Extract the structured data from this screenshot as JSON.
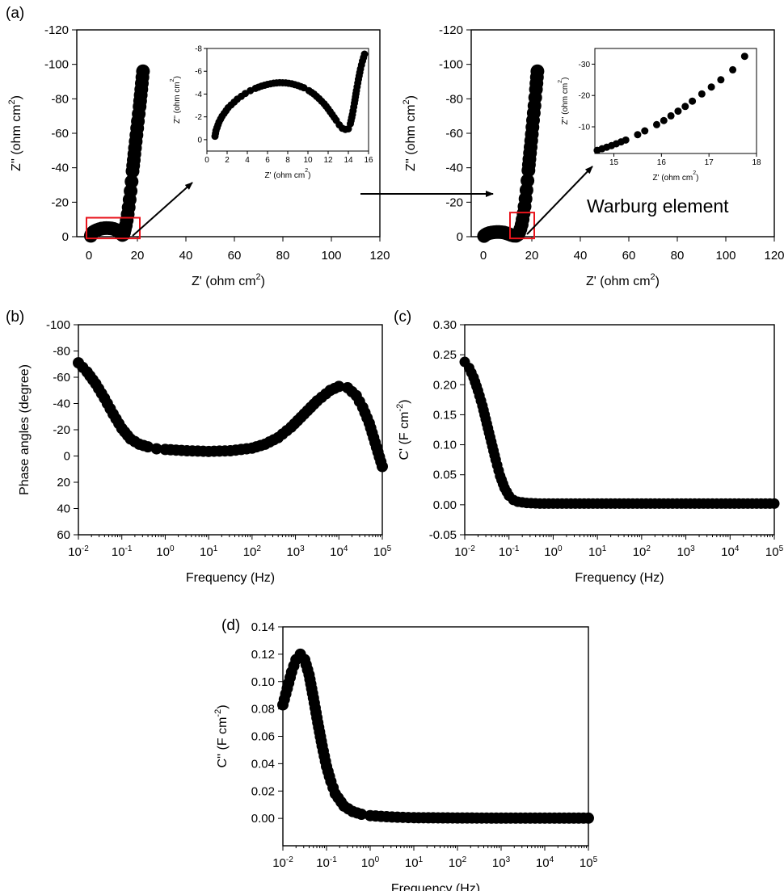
{
  "chart_data": [
    {
      "id": "a-left",
      "panel": "(a)",
      "type": "scatter",
      "xlabel": "Z' (ohm cm",
      "xlabel_sup": "2",
      "xlabel_close": ")",
      "ylabel": "Z'' (ohm cm",
      "ylabel_sup": "2",
      "ylabel_close": ")",
      "xlim": [
        -5,
        120
      ],
      "ylim": [
        0,
        -120
      ],
      "xscale": "linear",
      "xticks": [
        "0",
        "20",
        "40",
        "60",
        "80",
        "100",
        "120"
      ],
      "yticks": [
        "0",
        "-20",
        "-40",
        "-60",
        "-80",
        "-100",
        "-120"
      ],
      "series": [
        {
          "points": [
            [
              0.8,
              -0.5
            ],
            [
              1.0,
              -1.3
            ],
            [
              1.3,
              -2.0
            ],
            [
              1.8,
              -2.7
            ],
            [
              2.5,
              -3.3
            ],
            [
              3.3,
              -3.8
            ],
            [
              4.2,
              -4.3
            ],
            [
              5.2,
              -4.7
            ],
            [
              6.2,
              -4.9
            ],
            [
              7.2,
              -5.0
            ],
            [
              8.2,
              -4.95
            ],
            [
              9.2,
              -4.8
            ],
            [
              10.2,
              -4.5
            ],
            [
              11.1,
              -4.0
            ],
            [
              12.0,
              -3.3
            ],
            [
              12.7,
              -2.5
            ],
            [
              13.3,
              -1.6
            ],
            [
              13.8,
              -1.0
            ],
            [
              14.2,
              -1.3
            ],
            [
              14.5,
              -2.5
            ],
            [
              14.8,
              -4.2
            ],
            [
              15.2,
              -6.5
            ],
            [
              15.6,
              -9.5
            ],
            [
              16.0,
              -13
            ],
            [
              16.4,
              -17
            ],
            [
              16.8,
              -21.5
            ],
            [
              17.2,
              -26.5
            ],
            [
              17.6,
              -32
            ],
            [
              18.0,
              -38
            ],
            [
              18.5,
              -44.5
            ],
            [
              19.0,
              -51.5
            ],
            [
              19.6,
              -59
            ],
            [
              20.2,
              -67
            ],
            [
              20.9,
              -75.5
            ],
            [
              21.6,
              -85.5
            ],
            [
              22.3,
              -96
            ]
          ]
        }
      ],
      "highlight_box": [
        -1,
        21,
        1,
        -11
      ]
    },
    {
      "id": "a-left-inset",
      "panel": "",
      "type": "scatter",
      "xlabel": "Z' (ohm cm",
      "xlabel_sup": "2",
      "xlabel_close": ")",
      "ylabel": "Z'' (ohm cm",
      "ylabel_sup": "2",
      "ylabel_close": ")",
      "xlim": [
        0,
        16
      ],
      "ylim": [
        1,
        -8
      ],
      "xscale": "linear",
      "xticks": [
        "0",
        "2",
        "4",
        "6",
        "8",
        "10",
        "12",
        "14",
        "16"
      ],
      "yticks": [
        "0",
        "-2",
        "-4",
        "-6",
        "-8"
      ],
      "series": [
        {
          "points": [
            [
              0.8,
              -0.3
            ],
            [
              0.85,
              -0.55
            ],
            [
              0.9,
              -0.8
            ],
            [
              1.0,
              -1.05
            ],
            [
              1.1,
              -1.3
            ],
            [
              1.2,
              -1.55
            ],
            [
              1.35,
              -1.8
            ],
            [
              1.5,
              -2.05
            ],
            [
              1.7,
              -2.3
            ],
            [
              1.9,
              -2.55
            ],
            [
              2.1,
              -2.8
            ],
            [
              2.4,
              -3.05
            ],
            [
              2.7,
              -3.3
            ],
            [
              3.0,
              -3.55
            ],
            [
              3.4,
              -3.8
            ],
            [
              3.8,
              -4.05
            ],
            [
              4.3,
              -4.3
            ],
            [
              4.8,
              -4.5
            ],
            [
              5.4,
              -4.7
            ],
            [
              6.0,
              -4.85
            ],
            [
              6.6,
              -4.95
            ],
            [
              7.2,
              -5.0
            ],
            [
              7.8,
              -4.98
            ],
            [
              8.4,
              -4.9
            ],
            [
              9.0,
              -4.75
            ],
            [
              9.6,
              -4.55
            ],
            [
              10.1,
              -4.3
            ],
            [
              10.6,
              -4.0
            ],
            [
              11.1,
              -3.6
            ],
            [
              11.6,
              -3.15
            ],
            [
              12.0,
              -2.7
            ],
            [
              12.4,
              -2.2
            ],
            [
              12.8,
              -1.7
            ],
            [
              13.1,
              -1.3
            ],
            [
              13.4,
              -1.0
            ],
            [
              13.7,
              -0.9
            ],
            [
              14.0,
              -0.95
            ],
            [
              14.2,
              -1.4
            ],
            [
              14.4,
              -2.2
            ],
            [
              14.6,
              -3.2
            ],
            [
              14.8,
              -4.3
            ],
            [
              15.0,
              -5.3
            ],
            [
              15.2,
              -6.2
            ],
            [
              15.4,
              -6.9
            ],
            [
              15.6,
              -7.5
            ]
          ]
        }
      ]
    },
    {
      "id": "a-right",
      "panel": "",
      "type": "scatter",
      "xlabel": "Z' (ohm cm",
      "xlabel_sup": "2",
      "xlabel_close": ")",
      "ylabel": "Z'' (ohm cm",
      "ylabel_sup": "2",
      "ylabel_close": ")",
      "xlim": [
        -5,
        120
      ],
      "ylim": [
        0,
        -120
      ],
      "xscale": "linear",
      "xticks": [
        "0",
        "20",
        "40",
        "60",
        "80",
        "100",
        "120"
      ],
      "yticks": [
        "0",
        "-20",
        "-40",
        "-60",
        "-80",
        "-100",
        "-120"
      ],
      "series": [
        {
          "points": [
            [
              0.3,
              -0.4
            ],
            [
              0.8,
              -1.0
            ],
            [
              1.5,
              -1.6
            ],
            [
              2.5,
              -2.1
            ],
            [
              3.5,
              -2.4
            ],
            [
              4.5,
              -2.6
            ],
            [
              5.5,
              -2.7
            ],
            [
              6.5,
              -2.7
            ],
            [
              7.5,
              -2.6
            ],
            [
              8.5,
              -2.4
            ],
            [
              9.5,
              -2.0
            ],
            [
              10.5,
              -1.5
            ],
            [
              11.5,
              -1.0
            ],
            [
              12.5,
              -0.6
            ],
            [
              13.5,
              -0.5
            ],
            [
              14.3,
              -1.2
            ],
            [
              14.8,
              -2.5
            ],
            [
              15.3,
              -4.5
            ],
            [
              15.8,
              -7
            ],
            [
              16.2,
              -10
            ],
            [
              16.6,
              -13.5
            ],
            [
              17.0,
              -17.5
            ],
            [
              17.4,
              -22
            ],
            [
              17.8,
              -27
            ],
            [
              18.2,
              -32.5
            ],
            [
              18.6,
              -38.5
            ],
            [
              19.0,
              -45
            ],
            [
              19.5,
              -52
            ],
            [
              20.0,
              -59.5
            ],
            [
              20.5,
              -67.5
            ],
            [
              21.1,
              -76
            ],
            [
              21.7,
              -85.5
            ],
            [
              22.3,
              -96
            ]
          ]
        }
      ],
      "highlight_box": [
        11,
        21,
        1,
        -14
      ],
      "annotation": "Warburg element"
    },
    {
      "id": "a-right-inset",
      "panel": "",
      "type": "scatter",
      "xlabel": "Z' (ohm cm",
      "xlabel_sup": "2",
      "xlabel_close": ")",
      "ylabel": "Z'' (ohm cm",
      "ylabel_sup": "2",
      "ylabel_close": ")",
      "xlim": [
        14.6,
        18
      ],
      "ylim": [
        -1.5,
        -35
      ],
      "xscale": "linear",
      "xticks": [
        "15",
        "16",
        "17",
        "18"
      ],
      "yticks": [
        "-10",
        "-20",
        "-30"
      ],
      "series": [
        {
          "points": [
            [
              14.65,
              -2.5
            ],
            [
              14.75,
              -3.0
            ],
            [
              14.85,
              -3.5
            ],
            [
              14.95,
              -4.0
            ],
            [
              15.05,
              -4.6
            ],
            [
              15.15,
              -5.2
            ],
            [
              15.25,
              -5.8
            ],
            [
              15.5,
              -7.5
            ],
            [
              15.65,
              -8.7
            ],
            [
              15.9,
              -10.7
            ],
            [
              16.05,
              -12
            ],
            [
              16.2,
              -13.5
            ],
            [
              16.35,
              -15
            ],
            [
              16.5,
              -16.5
            ],
            [
              16.65,
              -18.2
            ],
            [
              16.85,
              -20.5
            ],
            [
              17.05,
              -22.7
            ],
            [
              17.25,
              -25
            ],
            [
              17.5,
              -28.2
            ],
            [
              17.75,
              -32.5
            ]
          ]
        }
      ]
    },
    {
      "id": "b",
      "panel": "(b)",
      "type": "scatter",
      "xlabel": "Frequency (Hz)",
      "ylabel": "Phase angles (degree)",
      "xlim": [
        -2,
        5
      ],
      "ylim": [
        60,
        -100
      ],
      "xscale": "log",
      "xticks_exp": [
        "-2",
        "-1",
        "0",
        "1",
        "2",
        "3",
        "4",
        "5"
      ],
      "yticks": [
        "-100",
        "-80",
        "-60",
        "-40",
        "-20",
        "0",
        "20",
        "40",
        "60"
      ],
      "series": [
        {
          "points": [
            [
              -2.0,
              -71
            ],
            [
              -1.8,
              -64
            ],
            [
              -1.6,
              -55
            ],
            [
              -1.4,
              -44
            ],
            [
              -1.2,
              -32
            ],
            [
              -1.0,
              -21
            ],
            [
              -0.8,
              -13
            ],
            [
              -0.6,
              -9
            ],
            [
              -0.4,
              -7
            ],
            [
              -0.2,
              -5.5
            ],
            [
              0.0,
              -5
            ],
            [
              0.5,
              -4
            ],
            [
              1.0,
              -3.5
            ],
            [
              1.5,
              -4
            ],
            [
              2.0,
              -6
            ],
            [
              2.3,
              -9
            ],
            [
              2.6,
              -14
            ],
            [
              2.9,
              -22
            ],
            [
              3.2,
              -32
            ],
            [
              3.5,
              -42
            ],
            [
              3.8,
              -50
            ],
            [
              4.0,
              -53
            ],
            [
              4.2,
              -52
            ],
            [
              4.4,
              -46
            ],
            [
              4.55,
              -37
            ],
            [
              4.7,
              -25
            ],
            [
              4.8,
              -14
            ],
            [
              4.9,
              -3
            ],
            [
              5.0,
              8
            ]
          ]
        }
      ]
    },
    {
      "id": "c",
      "panel": "(c)",
      "type": "scatter",
      "xlabel": "Frequency (Hz)",
      "ylabel": "C' (F cm",
      "ylabel_sup": "-2",
      "ylabel_close": ")",
      "xlim": [
        -2,
        5
      ],
      "ylim": [
        -0.05,
        0.3
      ],
      "xscale": "log",
      "xticks_exp": [
        "-2",
        "-1",
        "0",
        "1",
        "2",
        "3",
        "4",
        "5"
      ],
      "yticks": [
        "-0.05",
        "0.00",
        "0.05",
        "0.10",
        "0.15",
        "0.20",
        "0.25",
        "0.30"
      ],
      "series": [
        {
          "points": [
            [
              -2.0,
              0.238
            ],
            [
              -1.9,
              0.228
            ],
            [
              -1.8,
              0.212
            ],
            [
              -1.7,
              0.19
            ],
            [
              -1.6,
              0.165
            ],
            [
              -1.5,
              0.135
            ],
            [
              -1.4,
              0.105
            ],
            [
              -1.3,
              0.075
            ],
            [
              -1.2,
              0.048
            ],
            [
              -1.1,
              0.028
            ],
            [
              -1.0,
              0.015
            ],
            [
              -0.9,
              0.008
            ],
            [
              -0.8,
              0.005
            ],
            [
              -0.6,
              0.003
            ],
            [
              -0.3,
              0.002
            ],
            [
              0,
              0.002
            ],
            [
              1,
              0.002
            ],
            [
              2,
              0.002
            ],
            [
              3,
              0.002
            ],
            [
              4,
              0.002
            ],
            [
              5,
              0.002
            ]
          ]
        }
      ]
    },
    {
      "id": "d",
      "panel": "(d)",
      "type": "scatter",
      "xlabel": "Frequency (Hz)",
      "ylabel": "C'' (F cm",
      "ylabel_sup": "-2",
      "ylabel_close": ")",
      "xlim": [
        -2,
        5
      ],
      "ylim": [
        -0.02,
        0.14
      ],
      "xscale": "log",
      "xticks_exp": [
        "-2",
        "-1",
        "0",
        "1",
        "2",
        "3",
        "4",
        "5"
      ],
      "yticks": [
        "0.00",
        "0.02",
        "0.04",
        "0.06",
        "0.08",
        "0.10",
        "0.12",
        "0.14"
      ],
      "series": [
        {
          "points": [
            [
              -2.0,
              0.083
            ],
            [
              -1.9,
              0.095
            ],
            [
              -1.8,
              0.107
            ],
            [
              -1.7,
              0.116
            ],
            [
              -1.6,
              0.12
            ],
            [
              -1.5,
              0.116
            ],
            [
              -1.4,
              0.105
            ],
            [
              -1.3,
              0.088
            ],
            [
              -1.2,
              0.07
            ],
            [
              -1.1,
              0.053
            ],
            [
              -1.0,
              0.038
            ],
            [
              -0.9,
              0.027
            ],
            [
              -0.8,
              0.018
            ],
            [
              -0.6,
              0.009
            ],
            [
              -0.4,
              0.005
            ],
            [
              -0.2,
              0.003
            ],
            [
              0,
              0.002
            ],
            [
              0.5,
              0.001
            ],
            [
              1,
              0.0005
            ],
            [
              2,
              0.0003
            ],
            [
              3,
              0.0002
            ],
            [
              4,
              0.0002
            ],
            [
              5,
              0.0002
            ]
          ]
        }
      ]
    }
  ]
}
